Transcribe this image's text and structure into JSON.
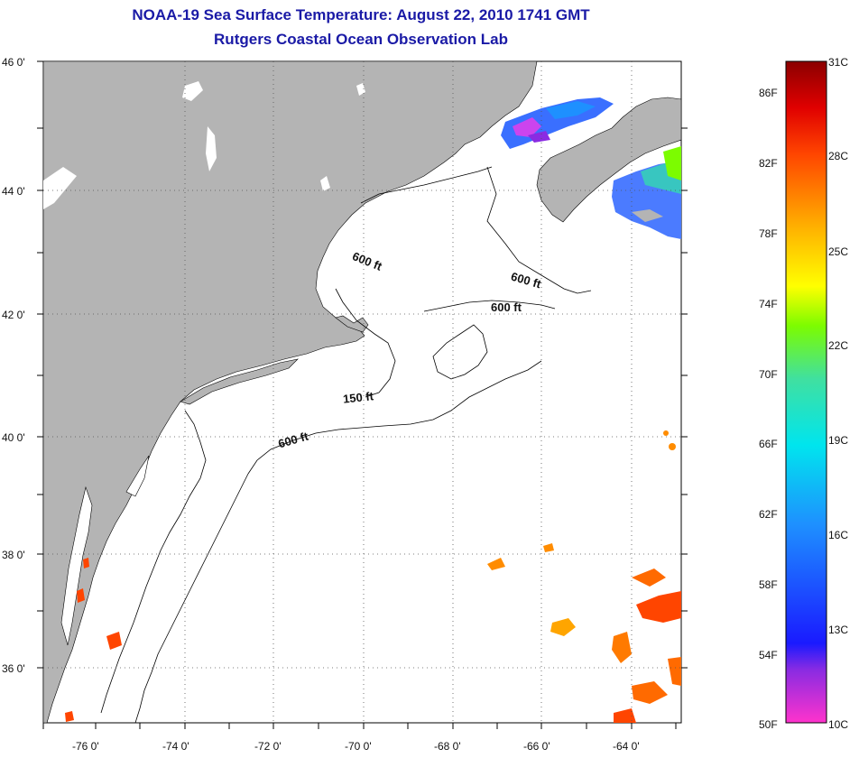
{
  "header": {
    "title_line1": "NOAA-19 Sea Surface Temperature:  August 22, 2010 1741 GMT",
    "title_line2": "Rutgers Coastal Ocean Observation Lab"
  },
  "axes": {
    "lat_labels": [
      "46 0'",
      "44 0'",
      "42 0'",
      "40 0'",
      "38 0'",
      "36 0'"
    ],
    "lon_labels": [
      "-76 0'",
      "-74 0'",
      "-72 0'",
      "-70 0'",
      "-68 0'",
      "-66 0'",
      "-64 0'"
    ]
  },
  "contour_labels": [
    "600 ft",
    "600 ft",
    "600 ft",
    "150 ft",
    "600 ft"
  ],
  "colorbar": {
    "fahrenheit": [
      "86F",
      "82F",
      "78F",
      "74F",
      "70F",
      "66F",
      "62F",
      "58F",
      "54F",
      "50F"
    ],
    "celsius": [
      "31C",
      "28C",
      "25C",
      "22C",
      "19C",
      "16C",
      "13C",
      "10C"
    ]
  },
  "colors": {
    "land": "#b4b4b4",
    "ocean": "#ffffff",
    "title": "#1a1aa6"
  }
}
